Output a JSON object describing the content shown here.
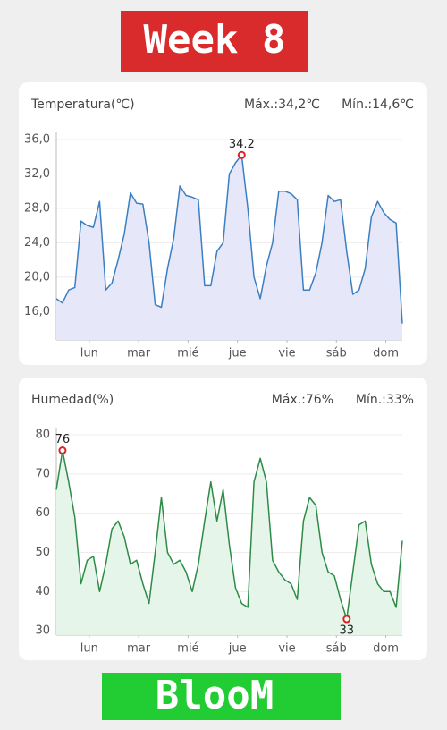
{
  "header": "Week 8",
  "footer": "BlooM",
  "chart_data": [
    {
      "type": "line",
      "title": "Temperatura(℃)",
      "max_text": "Máx.:34,2℃",
      "min_text": "Mín.:14,6℃",
      "x": [
        0,
        3,
        6,
        9,
        12,
        15,
        18,
        21,
        24,
        27,
        30,
        33,
        36,
        39,
        42,
        45,
        48,
        51,
        54,
        57,
        60,
        63,
        66,
        69,
        72,
        75,
        78,
        81,
        84,
        87,
        90,
        93,
        96,
        99,
        102,
        105,
        108,
        111,
        114,
        117,
        120,
        123,
        126,
        129,
        132,
        135,
        138,
        141,
        144,
        147,
        150,
        153,
        156,
        159,
        162,
        165,
        168
      ],
      "series": [
        {
          "name": "Temperatura",
          "color": "#3b7fc1",
          "fill": "#e6e8fa",
          "values": [
            17.5,
            17.0,
            18.5,
            18.8,
            26.5,
            26.0,
            25.8,
            28.8,
            18.5,
            19.3,
            22.0,
            25.0,
            29.8,
            28.6,
            28.5,
            24.0,
            16.8,
            16.5,
            21.0,
            24.5,
            30.6,
            29.5,
            29.3,
            29.0,
            19.0,
            19.0,
            23.0,
            24.0,
            32.0,
            33.3,
            34.2,
            28.0,
            20.0,
            17.5,
            21.3,
            24.0,
            30.0,
            30.0,
            29.7,
            29.0,
            18.5,
            18.5,
            20.5,
            24.0,
            29.5,
            28.8,
            29.0,
            23.0,
            18.0,
            18.5,
            21.0,
            27.0,
            28.8,
            27.5,
            26.7,
            26.3,
            14.6
          ]
        }
      ],
      "highlights": [
        {
          "x": 90,
          "y": 34.2
        }
      ],
      "xlim": [
        0,
        168
      ],
      "xticks": [
        {
          "value": 16,
          "label": "lun"
        },
        {
          "value": 40,
          "label": "mar"
        },
        {
          "value": 64,
          "label": "mié"
        },
        {
          "value": 88,
          "label": "jue"
        },
        {
          "value": 112,
          "label": "vie"
        },
        {
          "value": 136,
          "label": "sáb"
        },
        {
          "value": 160,
          "label": "dom"
        }
      ],
      "ylim": [
        12.7,
        36
      ],
      "yticks": [
        {
          "value": 16,
          "label": "16,0"
        },
        {
          "value": 20,
          "label": "20,0"
        },
        {
          "value": 24,
          "label": "24,0"
        },
        {
          "value": 28,
          "label": "28,0"
        },
        {
          "value": 32,
          "label": "32,0"
        },
        {
          "value": 36,
          "label": "36,0"
        }
      ],
      "grid": true
    },
    {
      "type": "line",
      "title": "Humedad(%)",
      "max_text": "Máx.:76%",
      "min_text": "Mín.:33%",
      "x": [
        0,
        3,
        6,
        9,
        12,
        15,
        18,
        21,
        24,
        27,
        30,
        33,
        36,
        39,
        42,
        45,
        48,
        51,
        54,
        57,
        60,
        63,
        66,
        69,
        72,
        75,
        78,
        81,
        84,
        87,
        90,
        93,
        96,
        99,
        102,
        105,
        108,
        111,
        114,
        117,
        120,
        123,
        126,
        129,
        132,
        135,
        138,
        141,
        144,
        147,
        150,
        153,
        156,
        159,
        162,
        165,
        168
      ],
      "series": [
        {
          "name": "Humedad",
          "color": "#2e8b47",
          "fill": "#e5f5e9",
          "values": [
            66,
            76,
            68,
            59,
            42,
            48,
            49,
            40,
            47,
            56,
            58,
            54,
            47,
            48,
            42,
            37,
            50,
            64,
            50,
            47,
            48,
            45,
            40,
            47,
            58,
            68,
            58,
            66,
            52,
            41,
            37,
            36,
            68,
            74,
            68,
            48,
            45,
            43,
            42,
            38,
            58,
            64,
            62,
            50,
            45,
            44,
            38,
            33,
            45,
            57,
            58,
            47,
            42,
            40,
            40,
            36,
            53
          ]
        }
      ],
      "highlights": [
        {
          "x": 3,
          "y": 76
        },
        {
          "x": 141,
          "y": 33
        }
      ],
      "xlim": [
        0,
        168
      ],
      "xticks": [
        {
          "value": 16,
          "label": "lun"
        },
        {
          "value": 40,
          "label": "mar"
        },
        {
          "value": 64,
          "label": "mié"
        },
        {
          "value": 88,
          "label": "jue"
        },
        {
          "value": 112,
          "label": "vie"
        },
        {
          "value": 136,
          "label": "sáb"
        },
        {
          "value": 160,
          "label": "dom"
        }
      ],
      "ylim": [
        28.9,
        80
      ],
      "yticks": [
        30,
        40,
        50,
        60,
        70,
        80
      ],
      "grid": true
    }
  ]
}
